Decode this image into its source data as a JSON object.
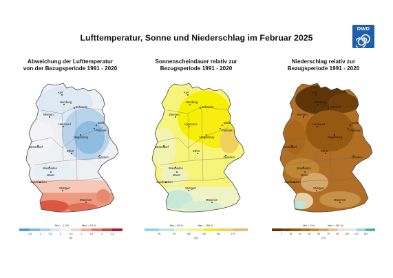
{
  "title": "Lufttemperatur, Sonne und Niederschlag im Februar 2025",
  "logo": {
    "text": "DWD",
    "color": "#1f5ea8"
  },
  "panels": [
    {
      "id": "temp",
      "title_line1": "Abweichung der Lufttemperatur",
      "title_line2": "von der Bezugsperiode 1991 - 2020",
      "min_label": "Min = -1,3 K",
      "max_label": "Max = 3,1 K",
      "unit": "[K]",
      "ticks": [
        "-2,5",
        "-1",
        "-0,5",
        "0",
        "0,5",
        "1",
        "1,5",
        "2",
        "2,5"
      ],
      "colors": [
        "#4e9fd3",
        "#7db8df",
        "#a9cfe9",
        "#d2e5f2",
        "#f3f3f3",
        "#f7d2c4",
        "#f0a994",
        "#e27760",
        "#cf4536",
        "#a71f2a"
      ]
    },
    {
      "id": "sun",
      "title_line1": "Sonnenscheindauer relativ zur",
      "title_line2": "Bezugsperiode 1991 - 2020",
      "min_label": "Min = 64 %",
      "max_label": "Max = 158 %",
      "unit": "[%]",
      "ticks": [
        "50",
        "75",
        "100",
        "125",
        "150",
        "175"
      ],
      "colors": [
        "#8fd3e6",
        "#bfe6d9",
        "#eef3b6",
        "#f6f27a",
        "#f2ef10",
        "#f0d060",
        "#e8b97a"
      ]
    },
    {
      "id": "rain",
      "title_line1": "Niederschlag relativ zur",
      "title_line2": "Bezugsperiode 1991 - 2020",
      "min_label": "Min = 5 %",
      "max_label": "Max = 161 %",
      "unit": "[%]",
      "ticks": [
        "1",
        "15",
        "30",
        "45",
        "60",
        "75",
        "90",
        "100",
        "110",
        "125"
      ],
      "colors": [
        "#5c3206",
        "#7a4509",
        "#94580f",
        "#ad6d1a",
        "#c48634",
        "#d6a45d",
        "#e5c28e",
        "#f2e2c5",
        "#d9eee6",
        "#9fd6cd",
        "#4fb2a6"
      ]
    }
  ],
  "cities": [
    "Kiel",
    "Hamburg",
    "Schwerin",
    "Bremen",
    "Hannover",
    "Berlin",
    "Potsdam",
    "Magdeburg",
    "Düsseldorf",
    "Erfurt",
    "Dresden",
    "Wiesbaden",
    "Mainz",
    "Saarbrücken",
    "Stuttgart",
    "München"
  ]
}
